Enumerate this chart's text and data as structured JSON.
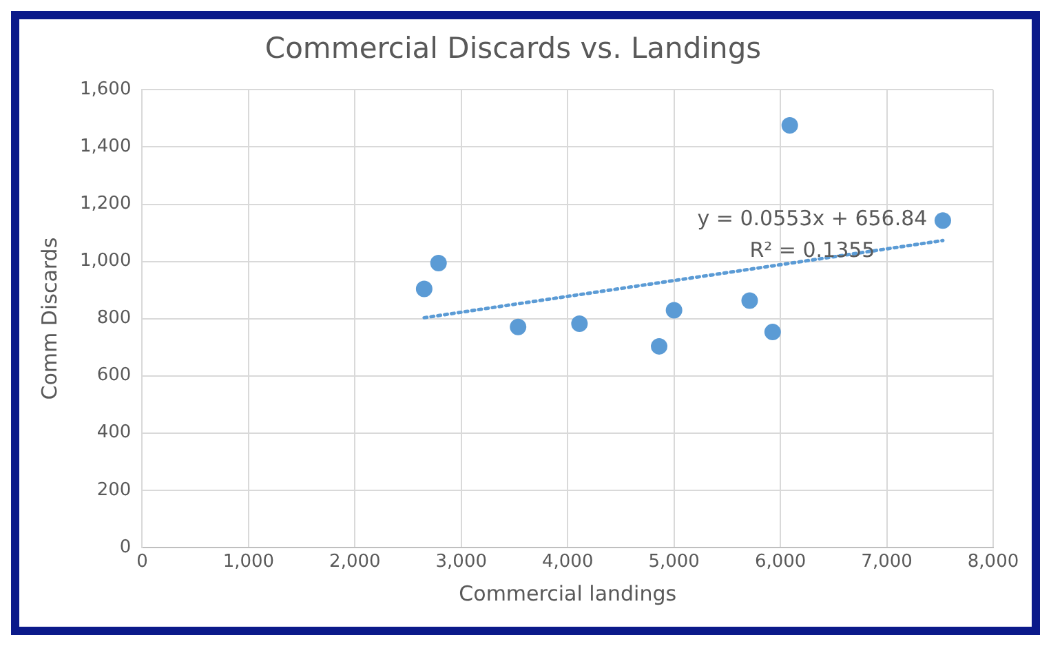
{
  "chart_data": {
    "type": "scatter",
    "title": "Commercial Discards vs. Landings",
    "xlabel": "Commercial landings",
    "ylabel": "Comm Discards",
    "xlim": [
      0,
      8000
    ],
    "xticks": [
      {
        "value": 0,
        "label": "0"
      },
      {
        "value": 1000,
        "label": "1,000"
      },
      {
        "value": 2000,
        "label": "2,000"
      },
      {
        "value": 3000,
        "label": "3,000"
      },
      {
        "value": 4000,
        "label": "4,000"
      },
      {
        "value": 5000,
        "label": "5,000"
      },
      {
        "value": 6000,
        "label": "6,000"
      },
      {
        "value": 7000,
        "label": "7,000"
      },
      {
        "value": 8000,
        "label": "8,000"
      }
    ],
    "ylim": [
      0,
      1600
    ],
    "yticks": [
      {
        "value": 0,
        "label": "0"
      },
      {
        "value": 200,
        "label": "200"
      },
      {
        "value": 400,
        "label": "400"
      },
      {
        "value": 600,
        "label": "600"
      },
      {
        "value": 800,
        "label": "800"
      },
      {
        "value": 1000,
        "label": "1,000"
      },
      {
        "value": 1200,
        "label": "1,200"
      },
      {
        "value": 1400,
        "label": "1,400"
      },
      {
        "value": 1600,
        "label": "1,600"
      }
    ],
    "grid": true,
    "marker": "circle",
    "series": [
      {
        "color": "#5b9bd5",
        "x": [
          2651,
          2786,
          3534,
          4111,
          4860,
          5000,
          5711,
          5927,
          6088,
          7527
        ],
        "values": [
          904,
          994,
          771,
          782,
          703,
          829,
          863,
          753,
          1476,
          1143
        ]
      },
      {
        "type": "line",
        "color": "#5b9bd5",
        "line_style": "dotted",
        "marker": "none",
        "x": [
          2651,
          7527
        ],
        "values": [
          803,
          1073
        ]
      }
    ],
    "annotations": [
      "y = 0.0553x + 656.84",
      "R² = 0.1355"
    ]
  }
}
